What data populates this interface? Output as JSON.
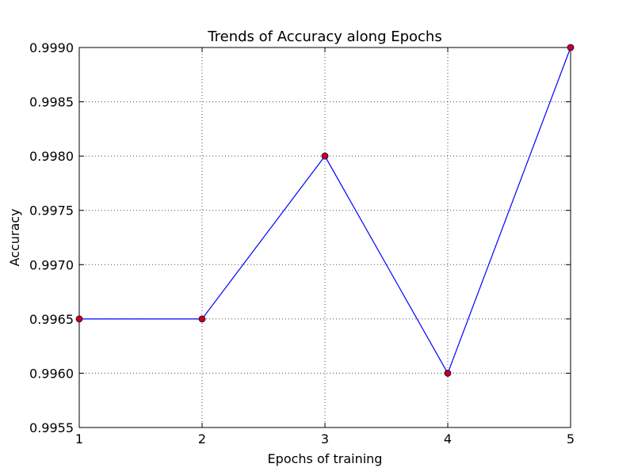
{
  "chart_data": {
    "type": "line",
    "title": "Trends of Accuracy along Epochs",
    "xlabel": "Epochs of training",
    "ylabel": "Accuracy",
    "x": [
      1,
      2,
      3,
      4,
      5
    ],
    "series": [
      {
        "values": [
          0.9965,
          0.9965,
          0.998,
          0.996,
          0.999
        ],
        "line_color": "#0000ff",
        "marker_fill": "#cc0000",
        "marker_edge": "#000080"
      }
    ],
    "xlim": [
      1,
      5
    ],
    "ylim": [
      0.9955,
      0.999
    ],
    "xticks": [
      "1",
      "2",
      "3",
      "4",
      "5"
    ],
    "yticks": [
      "0.9955",
      "0.9960",
      "0.9965",
      "0.9970",
      "0.9975",
      "0.9980",
      "0.9985",
      "0.9990"
    ],
    "ytick_values": [
      0.9955,
      0.996,
      0.9965,
      0.997,
      0.9975,
      0.998,
      0.9985,
      0.999
    ],
    "grid": true
  }
}
